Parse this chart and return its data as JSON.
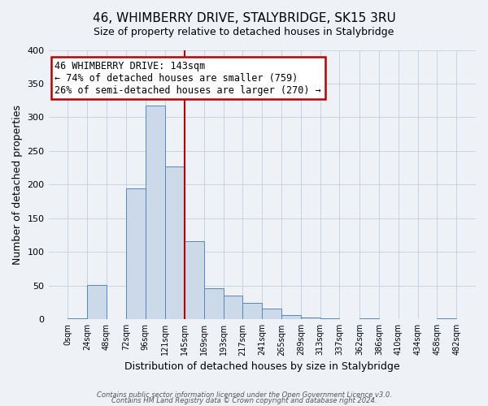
{
  "title": "46, WHIMBERRY DRIVE, STALYBRIDGE, SK15 3RU",
  "subtitle": "Size of property relative to detached houses in Stalybridge",
  "xlabel": "Distribution of detached houses by size in Stalybridge",
  "ylabel": "Number of detached properties",
  "bin_edges": [
    0,
    24,
    48,
    72,
    96,
    121,
    145,
    169,
    193,
    217,
    241,
    265,
    289,
    313,
    337,
    362,
    386,
    410,
    434,
    458,
    482
  ],
  "bin_labels": [
    "0sqm",
    "24sqm",
    "48sqm",
    "72sqm",
    "96sqm",
    "121sqm",
    "145sqm",
    "169sqm",
    "193sqm",
    "217sqm",
    "241sqm",
    "265sqm",
    "289sqm",
    "313sqm",
    "337sqm",
    "362sqm",
    "386sqm",
    "410sqm",
    "434sqm",
    "458sqm",
    "482sqm"
  ],
  "counts": [
    2,
    51,
    0,
    194,
    318,
    227,
    116,
    46,
    35,
    24,
    16,
    7,
    3,
    1,
    0,
    2,
    0,
    0,
    0,
    2
  ],
  "bar_color": "#ccd9e8",
  "bar_edge_color": "#5588bb",
  "property_line_x": 145,
  "property_line_color": "#bb0000",
  "annotation_line1": "46 WHIMBERRY DRIVE: 143sqm",
  "annotation_line2": "← 74% of detached houses are smaller (759)",
  "annotation_line3": "26% of semi-detached houses are larger (270) →",
  "annotation_box_color": "#bb0000",
  "ylim": [
    0,
    400
  ],
  "yticks": [
    0,
    50,
    100,
    150,
    200,
    250,
    300,
    350,
    400
  ],
  "footer_line1": "Contains HM Land Registry data © Crown copyright and database right 2024.",
  "footer_line2": "Contains public sector information licensed under the Open Government Licence v3.0.",
  "bg_color": "#eef2f7",
  "plot_bg_color": "#eef2f7",
  "grid_color": "#c5cdd8"
}
